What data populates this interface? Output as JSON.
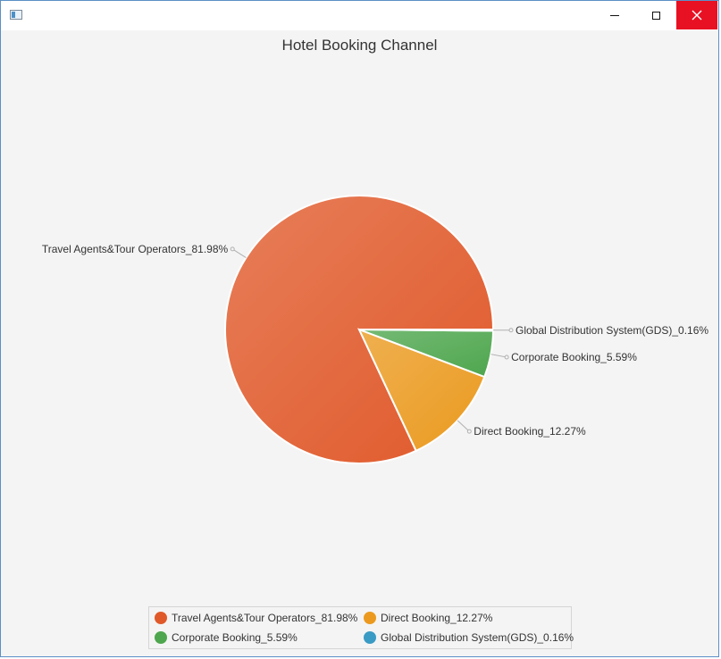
{
  "window": {
    "title": "",
    "controls": [
      "minimize",
      "maximize",
      "close"
    ]
  },
  "chart_data": {
    "type": "pie",
    "title": "Hotel Booking Channel",
    "legend_position": "bottom",
    "slices": [
      {
        "label": "Travel Agents&Tour Operators_81.98%",
        "value": 81.98,
        "color": "#e0592a"
      },
      {
        "label": "Direct Booking_12.27%",
        "value": 12.27,
        "color": "#eb9a1f"
      },
      {
        "label": "Corporate Booking_5.59%",
        "value": 5.59,
        "color": "#4ea64e"
      },
      {
        "label": "Global Distribution System(GDS)_0.16%",
        "value": 0.16,
        "color": "#3a9bc4"
      }
    ]
  }
}
